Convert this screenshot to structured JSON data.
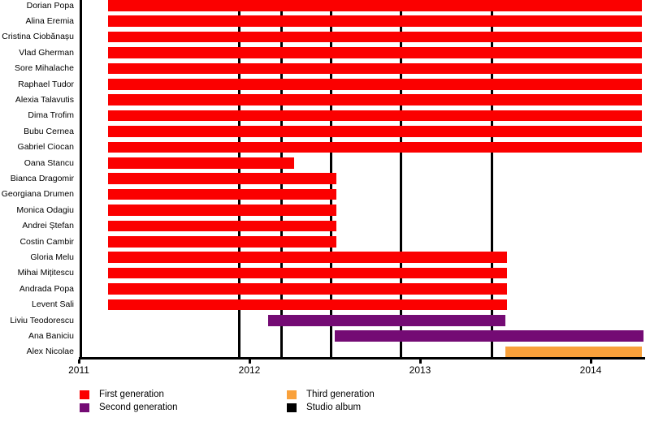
{
  "chart_data": {
    "type": "bar",
    "subtype": "gantt-timeline",
    "description": "Band member tenure timeline with studio album release markers",
    "x_axis": {
      "tick_labels": [
        "2011",
        "2012",
        "2013",
        "2014"
      ],
      "tick_values": [
        2011,
        2012,
        2013,
        2014
      ],
      "min": 2011,
      "max": 2014.315
    },
    "members": [
      {
        "name": "Dorian Popa",
        "generation": "first",
        "start": 2011.17,
        "end": 2014.3
      },
      {
        "name": "Alina Eremia",
        "generation": "first",
        "start": 2011.17,
        "end": 2014.3
      },
      {
        "name": "Cristina Ciobănașu",
        "generation": "first",
        "start": 2011.17,
        "end": 2014.3
      },
      {
        "name": "Vlad Gherman",
        "generation": "first",
        "start": 2011.17,
        "end": 2014.3
      },
      {
        "name": "Sore Mihalache",
        "generation": "first",
        "start": 2011.17,
        "end": 2014.3
      },
      {
        "name": "Raphael Tudor",
        "generation": "first",
        "start": 2011.17,
        "end": 2014.3
      },
      {
        "name": "Alexia Talavutis",
        "generation": "first",
        "start": 2011.17,
        "end": 2014.3
      },
      {
        "name": "Dima Trofim",
        "generation": "first",
        "start": 2011.17,
        "end": 2014.3
      },
      {
        "name": "Bubu Cernea",
        "generation": "first",
        "start": 2011.17,
        "end": 2014.3
      },
      {
        "name": "Gabriel Ciocan",
        "generation": "first",
        "start": 2011.17,
        "end": 2014.3
      },
      {
        "name": "Oana Stancu",
        "generation": "first",
        "start": 2011.17,
        "end": 2012.26
      },
      {
        "name": "Bianca Dragomir",
        "generation": "first",
        "start": 2011.17,
        "end": 2012.51
      },
      {
        "name": "Georgiana Drumen",
        "generation": "first",
        "start": 2011.17,
        "end": 2012.51
      },
      {
        "name": "Monica Odagiu",
        "generation": "first",
        "start": 2011.17,
        "end": 2012.51
      },
      {
        "name": "Andrei Ștefan",
        "generation": "first",
        "start": 2011.17,
        "end": 2012.51
      },
      {
        "name": "Costin Cambir",
        "generation": "first",
        "start": 2011.17,
        "end": 2012.51
      },
      {
        "name": "Gloria Melu",
        "generation": "first",
        "start": 2011.17,
        "end": 2013.51
      },
      {
        "name": "Mihai Mițitescu",
        "generation": "first",
        "start": 2011.17,
        "end": 2013.51
      },
      {
        "name": "Andrada Popa",
        "generation": "first",
        "start": 2011.17,
        "end": 2013.51
      },
      {
        "name": "Levent Sali",
        "generation": "first",
        "start": 2011.17,
        "end": 2013.51
      },
      {
        "name": "Liviu Teodorescu",
        "generation": "second",
        "start": 2012.11,
        "end": 2013.5
      },
      {
        "name": "Ana Baniciu",
        "generation": "second",
        "start": 2012.5,
        "end": 2014.31
      },
      {
        "name": "Alex Nicolae",
        "generation": "third",
        "start": 2013.5,
        "end": 2014.3
      }
    ],
    "studio_albums": [
      2011.94,
      2012.19,
      2012.48,
      2012.89,
      2013.42
    ],
    "generation_colors": {
      "first": "#fb0000",
      "second": "#740b74",
      "third": "#f9a13b"
    },
    "album_line_color": "#000000",
    "legend": [
      {
        "label": "First generation",
        "color": "#fb0000"
      },
      {
        "label": "Second generation",
        "color": "#740b74"
      },
      {
        "label": "Third generation",
        "color": "#f9a13b"
      },
      {
        "label": "Studio album",
        "color": "#000000"
      }
    ],
    "legend_position": "bottom"
  }
}
